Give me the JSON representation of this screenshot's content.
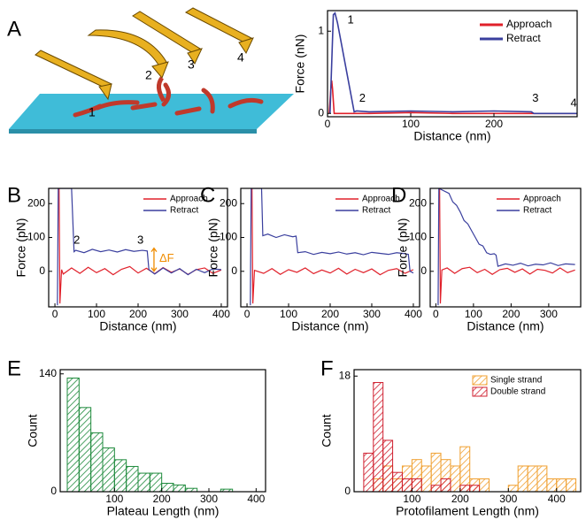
{
  "panel_labels": [
    "A",
    "B",
    "C",
    "D",
    "E",
    "F"
  ],
  "illustration": {
    "labels": [
      "1",
      "2",
      "3",
      "4"
    ]
  },
  "chart_data": [
    {
      "type": "line",
      "xlabel": "Distance (nm)",
      "ylabel": "Force (nN)",
      "xlim": [
        0,
        300
      ],
      "ylim": [
        -0.04,
        1.25
      ],
      "xticks": [
        0,
        100,
        200
      ],
      "yticks": [
        0,
        1
      ],
      "legend": "upper right",
      "series": [
        {
          "name": "Approach",
          "color": "#e0202a",
          "x": [
            2,
            4,
            5,
            6,
            8,
            12,
            50,
            100,
            150,
            200,
            250,
            300
          ],
          "values": [
            0,
            0.3,
            0.4,
            0.3,
            0,
            0,
            0,
            0.01,
            0,
            0,
            0,
            0
          ]
        },
        {
          "name": "Retract",
          "color": "#3a3f9e",
          "x": [
            3,
            5,
            7,
            9,
            12,
            32,
            35,
            50,
            100,
            150,
            200,
            245,
            248,
            300
          ],
          "values": [
            0,
            0.6,
            1.2,
            1.22,
            1.1,
            0.02,
            0.03,
            0.02,
            0.03,
            0.02,
            0.03,
            0.02,
            0,
            0
          ]
        }
      ],
      "annotations": [
        {
          "text": "1",
          "x": 24,
          "y": 1.13
        },
        {
          "text": "2",
          "x": 38,
          "y": 0.18
        },
        {
          "text": "3",
          "x": 246,
          "y": 0.18
        },
        {
          "text": "4",
          "x": 292,
          "y": 0.12
        }
      ]
    },
    {
      "type": "line",
      "xlabel": "Distance (nm)",
      "ylabel": "Force (pN)",
      "xlim": [
        -15,
        415
      ],
      "ylim": [
        -105,
        245
      ],
      "xticks": [
        0,
        100,
        200,
        300,
        400
      ],
      "yticks": [
        0,
        100,
        200
      ],
      "legend": "upper right",
      "series": [
        {
          "name": "Approach",
          "color": "#e0202a",
          "x": [
            10,
            12,
            16,
            20,
            40,
            60,
            80,
            100,
            120,
            140,
            160,
            180,
            200,
            220,
            240,
            260,
            280,
            300,
            320,
            340,
            360,
            380,
            400
          ],
          "values": [
            245,
            -95,
            5,
            -8,
            10,
            -6,
            12,
            -4,
            8,
            -10,
            6,
            14,
            -5,
            9,
            -7,
            11,
            -3,
            7,
            -9,
            5,
            10,
            -6,
            4
          ]
        },
        {
          "name": "Retract",
          "color": "#3a3f9e",
          "x": [
            6,
            8,
            40,
            46,
            50,
            70,
            90,
            110,
            130,
            150,
            170,
            190,
            210,
            222,
            226,
            240,
            260,
            280,
            300,
            320,
            340,
            360,
            380,
            400
          ],
          "values": [
            -100,
            245,
            245,
            58,
            62,
            55,
            65,
            58,
            63,
            57,
            64,
            59,
            62,
            60,
            5,
            -8,
            10,
            -5,
            8,
            -10,
            6,
            -4,
            7,
            5
          ]
        }
      ],
      "annotations": [
        {
          "text": "2",
          "x": 45,
          "y": 91
        },
        {
          "text": "3",
          "x": 198,
          "y": 91
        },
        {
          "text": "ΔF",
          "x": 251,
          "y": 37,
          "color": "#f08c00"
        }
      ]
    },
    {
      "type": "line",
      "xlabel": "Distance (nm)",
      "ylabel": "Force (pN)",
      "xlim": [
        -15,
        415
      ],
      "ylim": [
        -105,
        245
      ],
      "xticks": [
        0,
        100,
        200,
        300,
        400
      ],
      "yticks": [
        0,
        100,
        200
      ],
      "legend": "upper right",
      "series": [
        {
          "name": "Approach",
          "color": "#e0202a",
          "x": [
            12,
            14,
            18,
            40,
            60,
            80,
            100,
            120,
            140,
            160,
            180,
            200,
            220,
            240,
            260,
            280,
            300,
            320,
            340,
            360,
            380,
            400
          ],
          "values": [
            245,
            -95,
            3,
            -6,
            8,
            -9,
            5,
            -3,
            10,
            -7,
            4,
            -5,
            9,
            -8,
            6,
            -4,
            7,
            -10,
            3,
            8,
            -6,
            5
          ]
        },
        {
          "name": "Retract",
          "color": "#3a3f9e",
          "x": [
            8,
            10,
            35,
            38,
            50,
            70,
            90,
            110,
            118,
            122,
            140,
            160,
            180,
            200,
            220,
            240,
            260,
            280,
            300,
            320,
            340,
            360,
            380,
            388,
            392,
            400
          ],
          "values": [
            -100,
            245,
            245,
            105,
            110,
            100,
            108,
            102,
            104,
            55,
            58,
            50,
            56,
            52,
            57,
            51,
            55,
            49,
            56,
            53,
            50,
            55,
            52,
            50,
            0,
            -5
          ]
        }
      ],
      "annotations": []
    },
    {
      "type": "line",
      "xlabel": "Distance (nm)",
      "ylabel": "Force (pN)",
      "xlim": [
        -15,
        385
      ],
      "ylim": [
        -105,
        245
      ],
      "xticks": [
        0,
        100,
        200,
        300
      ],
      "yticks": [
        0,
        100,
        200
      ],
      "legend": "upper right",
      "series": [
        {
          "name": "Approach",
          "color": "#e0202a",
          "x": [
            10,
            12,
            16,
            30,
            50,
            70,
            90,
            110,
            130,
            150,
            170,
            190,
            210,
            230,
            250,
            270,
            290,
            310,
            330,
            350,
            370
          ],
          "values": [
            245,
            -95,
            4,
            10,
            -6,
            8,
            12,
            -4,
            6,
            -9,
            5,
            9,
            -3,
            7,
            -8,
            6,
            3,
            -5,
            10,
            -4,
            4
          ]
        },
        {
          "name": "Retract",
          "color": "#3a3f9e",
          "x": [
            6,
            8,
            35,
            45,
            55,
            65,
            75,
            85,
            95,
            105,
            115,
            125,
            135,
            145,
            155,
            160,
            165,
            185,
            205,
            225,
            245,
            265,
            285,
            305,
            325,
            345,
            370
          ],
          "values": [
            -100,
            245,
            230,
            205,
            195,
            175,
            150,
            140,
            120,
            100,
            80,
            75,
            55,
            50,
            52,
            48,
            15,
            22,
            18,
            24,
            16,
            21,
            19,
            25,
            17,
            22,
            20
          ]
        }
      ],
      "annotations": []
    },
    {
      "type": "histogram",
      "xlabel": "Plateau Length (nm)",
      "ylabel": "Count",
      "xlim": [
        -15,
        420
      ],
      "ylim": [
        0,
        145
      ],
      "xticks": [
        100,
        200,
        300,
        400
      ],
      "yticks": [
        0,
        140
      ],
      "color": "#1e8a3c",
      "bins": [
        0,
        25,
        50,
        75,
        100,
        125,
        150,
        175,
        200,
        225,
        250,
        275,
        300,
        325,
        350
      ],
      "values": [
        135,
        100,
        70,
        52,
        38,
        30,
        22,
        22,
        10,
        8,
        4,
        0,
        0,
        3
      ]
    },
    {
      "type": "histogram",
      "xlabel": "Protofilament Length (nm)",
      "ylabel": "Count",
      "xlim": [
        -20,
        450
      ],
      "ylim": [
        0,
        19
      ],
      "xticks": [
        100,
        200,
        300,
        400
      ],
      "yticks": [
        0,
        18
      ],
      "legend": "upper right",
      "bins": [
        0,
        20,
        40,
        60,
        80,
        100,
        120,
        140,
        160,
        180,
        200,
        220,
        240,
        260,
        280,
        300,
        320,
        340,
        360,
        380,
        400,
        420,
        440
      ],
      "series": [
        {
          "name": "Single strand",
          "color": "#f0a030",
          "values": [
            0,
            2,
            4,
            2,
            4,
            5,
            4,
            6,
            5,
            4,
            7,
            2,
            2,
            0,
            0,
            1,
            4,
            4,
            4,
            2,
            2,
            2
          ]
        },
        {
          "name": "Double strand",
          "color": "#d02030",
          "values": [
            6,
            17,
            8,
            3,
            2,
            2,
            0,
            1,
            2,
            0,
            1,
            1,
            0,
            0,
            0,
            0,
            0,
            0,
            0,
            0,
            0,
            0
          ]
        }
      ]
    }
  ]
}
